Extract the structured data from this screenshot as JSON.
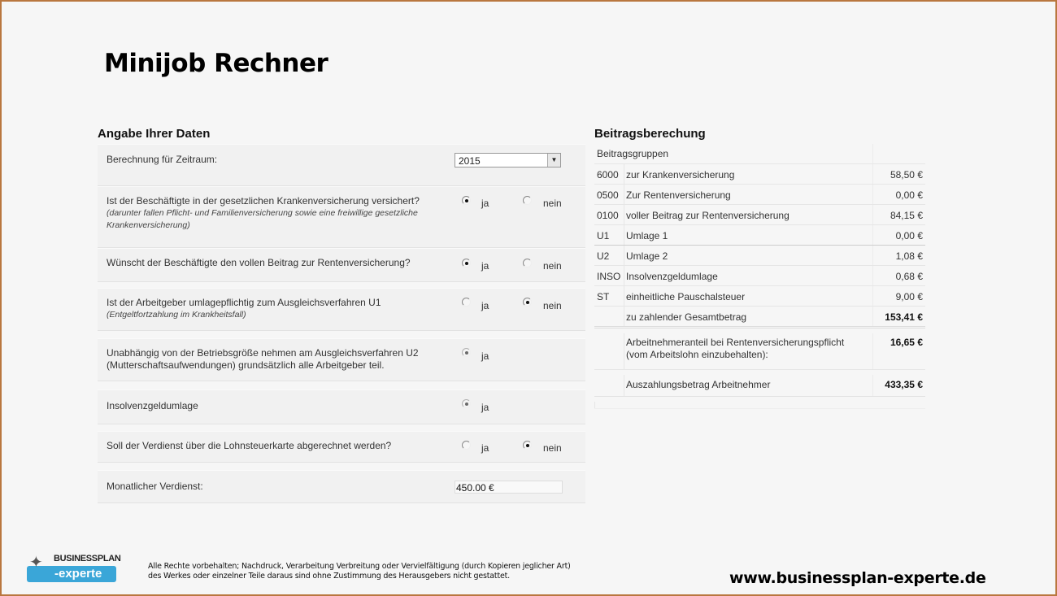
{
  "title": "Minijob Rechner",
  "left": {
    "heading": "Angabe Ihrer Daten",
    "period": {
      "label": "Berechnung für Zeitraum:",
      "value": "2015"
    },
    "questions": [
      {
        "text": "Ist der Beschäftigte in der gesetzlichen Krankenversicherung versichert?",
        "note": "(darunter fallen Pflicht- und Familienversicherung sowie eine freiwillige gesetzliche Krankenversicherung)",
        "ja": "ja",
        "nein": "nein",
        "selected": "ja"
      },
      {
        "text": "Wünscht der Beschäftigte den vollen Beitrag zur Rentenversicherung?",
        "note": "",
        "ja": "ja",
        "nein": "nein",
        "selected": "ja"
      },
      {
        "text": "Ist der Arbeitgeber umlagepflichtig zum Ausgleichsverfahren U1",
        "note": "(Entgeltfortzahlung im Krankheitsfall)",
        "ja": "ja",
        "nein": "nein",
        "selected": "nein"
      },
      {
        "text": "Unabhängig von der Betriebsgröße nehmen am Ausgleichsverfahren U2 (Mutterschaftsaufwendungen) grundsätzlich alle Arbeitgeber teil.",
        "note": "",
        "ja": "ja",
        "selected": "ja"
      },
      {
        "text": "Insolvenzgeldumlage",
        "note": "",
        "ja": "ja",
        "selected": "ja"
      },
      {
        "text": "Soll der Verdienst über die Lohnsteuerkarte abgerechnet werden?",
        "note": "",
        "ja": "ja",
        "nein": "nein",
        "selected": "nein"
      }
    ],
    "salary": {
      "label": "Monatlicher Verdienst:",
      "value": "450.00 €"
    }
  },
  "right": {
    "heading": "Beitragsberechung",
    "header": "Beitragsgruppen",
    "rows": [
      {
        "code": "6000",
        "desc": "zur Krankenversicherung",
        "value": "58,50 €"
      },
      {
        "code": "0500",
        "desc": "Zur Rentenversicherung",
        "value": "0,00 €"
      },
      {
        "code": "0100",
        "desc": "voller Beitrag zur Rentenversicherung",
        "value": "84,15 €"
      },
      {
        "code": "U1",
        "desc": "Umlage 1",
        "value": "0,00 €"
      },
      {
        "code": "U2",
        "desc": "Umlage 2",
        "value": "1,08 €"
      },
      {
        "code": "INSO",
        "desc": "Insolvenzgeldumlage",
        "value": "0,68 €"
      },
      {
        "code": "ST",
        "desc": "einheitliche Pauschalsteuer",
        "value": "9,00 €"
      }
    ],
    "total": {
      "desc": "zu zahlender Gesamtbetrag",
      "value": "153,41 €"
    },
    "employee_share": {
      "line1": "Arbeitnehmeranteil bei Rentenversicherungspflicht",
      "line2": "(vom Arbeitslohn einzubehalten):",
      "value": "16,65 €"
    },
    "payout": {
      "desc": "Auszahlungsbetrag Arbeitnehmer",
      "value": "433,35 €"
    }
  },
  "footer": {
    "logo_top": "BUSINESSPLAN",
    "logo_bottom": "-experte",
    "legal_line1": "Alle Rechte vorbehalten; Nachdruck, Verarbeitung Verbreitung oder Vervielfältigung (durch Kopieren jeglicher Art)",
    "legal_line2": "des Werkes oder einzelner Teile daraus sind ohne Zustimmung des Herausgebers nicht gestattet.",
    "url": "www.businessplan-experte.de"
  },
  "colors": {
    "frame": "#b9773f",
    "logo_blue": "#3aa6d8"
  }
}
